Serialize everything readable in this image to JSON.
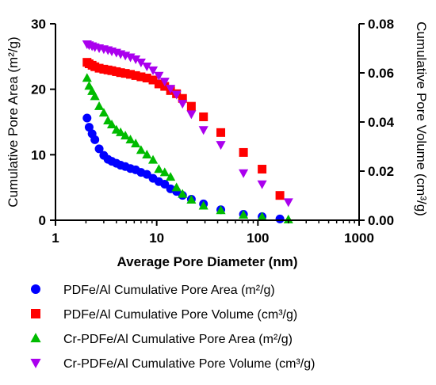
{
  "chart_data": {
    "type": "scatter",
    "xlabel": "Average Pore Diameter (nm)",
    "ylabel": "Cumulative Pore Area (m²/g)",
    "y2label": "Cumulative Pore Volume (cm³/g)",
    "xscale": "log",
    "xlim": [
      1,
      1000
    ],
    "ylim": [
      0,
      30
    ],
    "y2lim": [
      0,
      0.08
    ],
    "xticks": [
      "1",
      "10",
      "100",
      "1000"
    ],
    "yticks": [
      "0",
      "10",
      "20",
      "30"
    ],
    "y2ticks": [
      "0.00",
      "0.02",
      "0.04",
      "0.06",
      "0.08"
    ],
    "grid": false,
    "legend_position": "bottom",
    "series": [
      {
        "name": "PDFe/Al Cumulative Pore Area (m²/g)",
        "axis": "left",
        "marker": "circle",
        "color": "#0000ff",
        "x": [
          2.05,
          2.15,
          2.3,
          2.45,
          2.7,
          3.0,
          3.3,
          3.6,
          4.0,
          4.4,
          4.9,
          5.5,
          6.2,
          7.0,
          8.0,
          9.2,
          10.5,
          12.0,
          13.7,
          15.7,
          18.0,
          22.0,
          29.0,
          43.0,
          72.0,
          110.0,
          165.0
        ],
        "values": [
          15.6,
          14.2,
          13.2,
          12.3,
          10.9,
          9.9,
          9.3,
          9.0,
          8.7,
          8.4,
          8.2,
          7.9,
          7.7,
          7.3,
          7.0,
          6.4,
          5.9,
          5.5,
          4.8,
          4.4,
          3.8,
          3.2,
          2.5,
          1.6,
          0.9,
          0.55,
          0.2
        ]
      },
      {
        "name": "PDFe/Al Cumulative Pore Volume (cm³/g)",
        "axis": "right",
        "marker": "square",
        "color": "#ff0000",
        "x": [
          2.05,
          2.15,
          2.3,
          2.45,
          2.7,
          3.0,
          3.3,
          3.6,
          4.0,
          4.4,
          4.9,
          5.5,
          6.2,
          7.0,
          8.0,
          9.2,
          10.5,
          12.0,
          13.7,
          15.7,
          18.0,
          22.0,
          29.0,
          43.0,
          72.0,
          110.0,
          165.0
        ],
        "values": [
          0.0643,
          0.0637,
          0.0631,
          0.0625,
          0.0619,
          0.0615,
          0.0612,
          0.0609,
          0.0605,
          0.0601,
          0.0598,
          0.0594,
          0.0589,
          0.0584,
          0.0579,
          0.0571,
          0.0555,
          0.0545,
          0.0528,
          0.0515,
          0.0496,
          0.0464,
          0.0421,
          0.0357,
          0.0276,
          0.0208,
          0.0101
        ]
      },
      {
        "name": "Cr-PDFe/Al Cumulative Pore Area (m²/g)",
        "axis": "left",
        "marker": "triangle-up",
        "color": "#00bb00",
        "x": [
          2.05,
          2.15,
          2.3,
          2.45,
          2.7,
          3.0,
          3.3,
          3.6,
          4.0,
          4.4,
          4.9,
          5.5,
          6.2,
          7.0,
          8.0,
          9.2,
          10.5,
          12.0,
          13.7,
          15.7,
          18.0,
          22.0,
          29.0,
          43.0,
          72.0,
          110.0,
          200.0
        ],
        "values": [
          21.7,
          20.5,
          19.7,
          18.9,
          17.4,
          16.4,
          15.2,
          14.6,
          13.8,
          13.4,
          12.9,
          12.3,
          11.7,
          10.7,
          10.0,
          9.2,
          7.8,
          7.3,
          6.6,
          5.0,
          4.0,
          3.1,
          2.2,
          1.5,
          0.8,
          0.5,
          0.1
        ]
      },
      {
        "name": "Cr-PDFe/Al Cumulative Pore Volume (cm³/g)",
        "axis": "right",
        "marker": "triangle-down",
        "color": "#aa00ee",
        "x": [
          2.05,
          2.15,
          2.3,
          2.45,
          2.7,
          3.0,
          3.3,
          3.6,
          4.0,
          4.4,
          4.9,
          5.5,
          6.2,
          7.0,
          8.0,
          9.2,
          10.5,
          12.0,
          13.7,
          15.7,
          18.0,
          22.0,
          29.0,
          43.0,
          72.0,
          110.0,
          200.0
        ],
        "values": [
          0.0717,
          0.0713,
          0.0709,
          0.0705,
          0.0701,
          0.0697,
          0.0693,
          0.0688,
          0.0683,
          0.0677,
          0.0671,
          0.0664,
          0.0656,
          0.0643,
          0.0627,
          0.0611,
          0.0589,
          0.0565,
          0.0536,
          0.0512,
          0.0475,
          0.0432,
          0.0368,
          0.0307,
          0.0192,
          0.0147,
          0.0074
        ]
      }
    ]
  }
}
